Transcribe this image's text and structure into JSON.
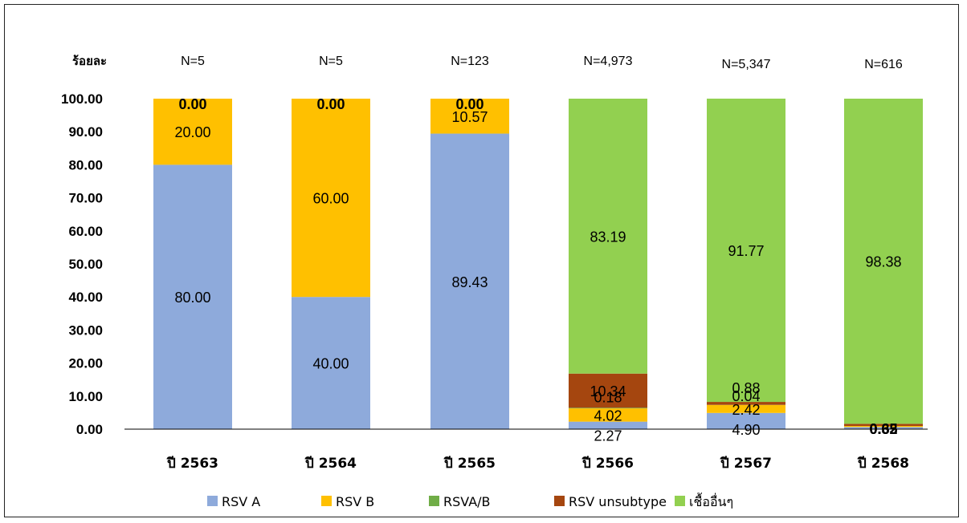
{
  "chart_data": {
    "type": "bar",
    "stacked": true,
    "ylabel": "ร้อยละ",
    "ylim": [
      0,
      100
    ],
    "yticks": [
      "0.00",
      "10.00",
      "20.00",
      "30.00",
      "40.00",
      "50.00",
      "60.00",
      "70.00",
      "80.00",
      "90.00",
      "100.00"
    ],
    "categories": [
      "ปี 2563",
      "ปี 2564",
      "ปี 2565",
      "ปี 2566",
      "ปี 2567",
      "ปี 2568"
    ],
    "n_labels": [
      "N=5",
      "N=5",
      "N=123",
      "N=4,973",
      "N=5,347",
      "N=616"
    ],
    "series": [
      {
        "name": "RSV A",
        "color": "#8EAADB",
        "values": [
          80.0,
          40.0,
          89.43,
          2.27,
          4.9,
          0.65
        ]
      },
      {
        "name": "RSV B",
        "color": "#FFC000",
        "values": [
          20.0,
          60.0,
          10.57,
          4.02,
          2.42,
          0.32
        ]
      },
      {
        "name": "RSVA/B",
        "color": "#70AD47",
        "values": [
          0.0,
          0.0,
          0.0,
          0.18,
          0.04,
          0.0
        ]
      },
      {
        "name": "RSV unsubtype",
        "color": "#A5460F",
        "values": [
          0.0,
          0.0,
          0.0,
          10.34,
          0.88,
          0.65
        ]
      },
      {
        "name": "เชื้ออื่นๆ",
        "color": "#92D050",
        "values": [
          0.0,
          0.0,
          0.0,
          83.19,
          91.77,
          98.38
        ]
      }
    ],
    "grid": false,
    "legend_position": "bottom"
  }
}
